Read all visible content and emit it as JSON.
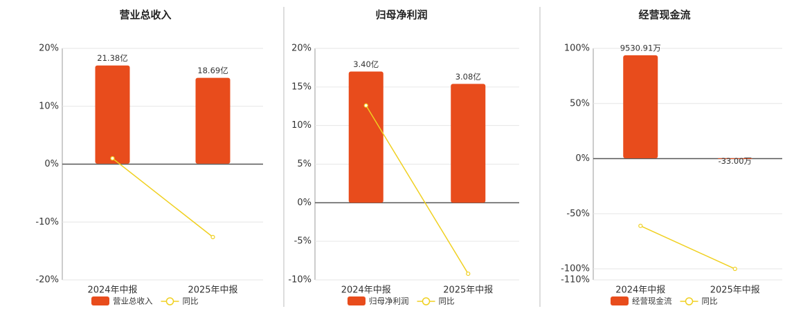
{
  "chart_data": [
    {
      "type": "bar",
      "title": "营业总收入",
      "categories": [
        "2024年中报",
        "2025年中报"
      ],
      "series": [
        {
          "name": "营业总收入",
          "type": "bar",
          "axis": "y2",
          "color": "#e84c1c",
          "values": [
            21.38,
            18.69
          ],
          "value_labels": [
            "21.38亿",
            "18.69亿"
          ]
        },
        {
          "name": "同比",
          "type": "line",
          "color": "#f0d020",
          "values": [
            1.0,
            -12.6
          ]
        }
      ],
      "ylim": [
        -20,
        20
      ],
      "yticks": [
        {
          "value": 20,
          "label": "20%"
        },
        {
          "value": 10,
          "label": "10%"
        },
        {
          "value": 0,
          "label": "0%"
        },
        {
          "value": -10,
          "label": "-10%"
        },
        {
          "value": -20,
          "label": "-20%"
        }
      ],
      "y2lim": [
        -25.3,
        25.1
      ],
      "grid": true
    },
    {
      "type": "bar",
      "title": "归母净利润",
      "categories": [
        "2024年中报",
        "2025年中报"
      ],
      "series": [
        {
          "name": "归母净利润",
          "type": "bar",
          "axis": "y2",
          "color": "#e84c1c",
          "values": [
            3.4,
            3.08
          ],
          "value_labels": [
            "3.40亿",
            "3.08亿"
          ]
        },
        {
          "name": "同比",
          "type": "line",
          "color": "#f0d020",
          "values": [
            12.6,
            -9.2
          ]
        }
      ],
      "ylim": [
        -10,
        20
      ],
      "yticks": [
        {
          "value": 20,
          "label": "20%"
        },
        {
          "value": 15,
          "label": "15%"
        },
        {
          "value": 10,
          "label": "10%"
        },
        {
          "value": 5,
          "label": "5%"
        },
        {
          "value": 0,
          "label": "0%"
        },
        {
          "value": -5,
          "label": "-5%"
        },
        {
          "value": -10,
          "label": "-10%"
        }
      ],
      "y2lim": [
        -2.0,
        4.0
      ],
      "grid": true
    },
    {
      "type": "bar",
      "title": "经营现金流",
      "categories": [
        "2024年中报",
        "2025年中报"
      ],
      "series": [
        {
          "name": "经营现金流",
          "type": "bar",
          "axis": "y2",
          "color": "#e84c1c",
          "values": [
            9530.91,
            -33.0
          ],
          "value_labels": [
            "9530.91万",
            "-33.00万"
          ]
        },
        {
          "name": "同比",
          "type": "line",
          "color": "#f0d020",
          "values": [
            -61,
            -100
          ]
        }
      ],
      "ylim": [
        -110,
        100
      ],
      "yticks": [
        {
          "value": 100,
          "label": "100%"
        },
        {
          "value": 50,
          "label": "50%"
        },
        {
          "value": 0,
          "label": "0%"
        },
        {
          "value": -50,
          "label": "-50%"
        },
        {
          "value": -100,
          "label": "-100%"
        },
        {
          "value": -110,
          "label": "-110%"
        }
      ],
      "y2lim": [
        -11260,
        10170
      ],
      "grid": true
    }
  ]
}
